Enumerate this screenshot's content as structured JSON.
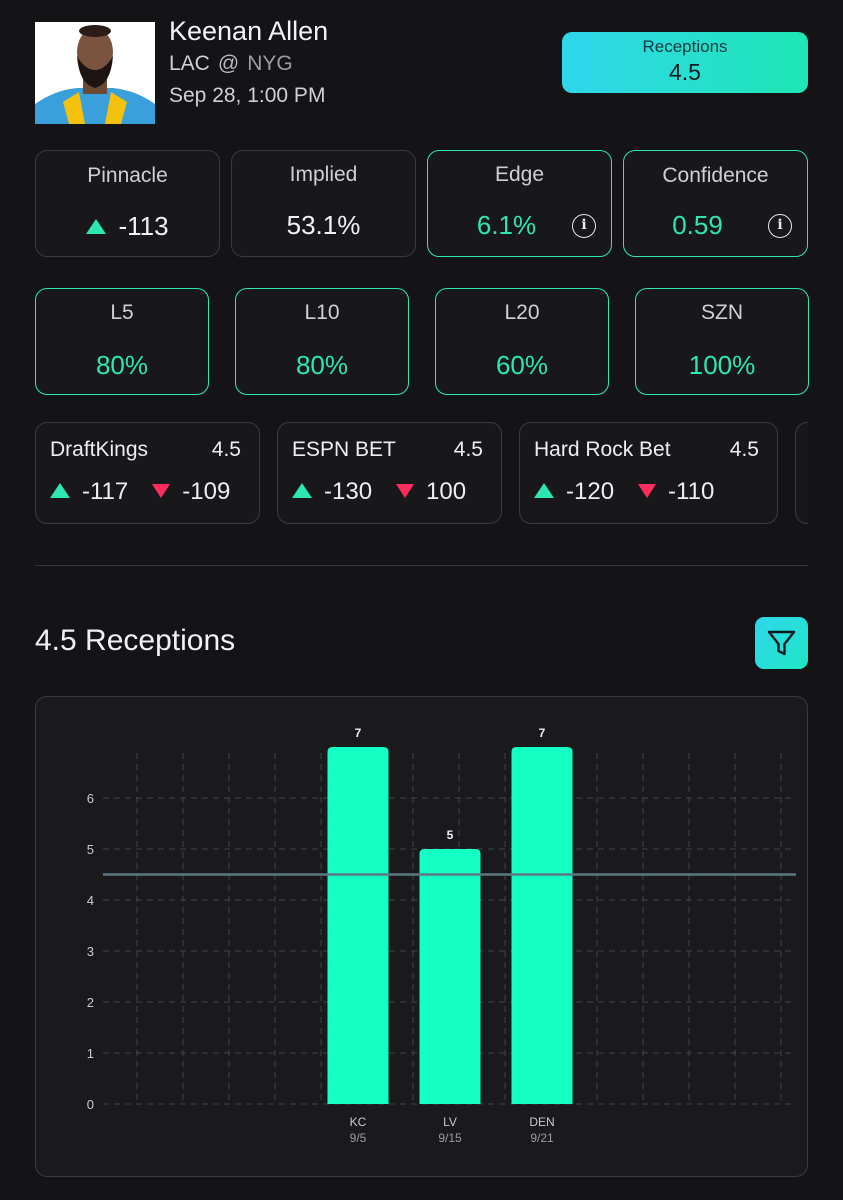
{
  "header": {
    "player_name": "Keenan Allen",
    "team": "LAC",
    "at_symbol": "@",
    "opponent": "NYG",
    "game_time": "Sep 28, 1:00 PM",
    "prop": {
      "label": "Receptions",
      "line": "4.5"
    }
  },
  "metrics": {
    "pinnacle": {
      "title": "Pinnacle",
      "value": "-113",
      "icon": "triangle-up-icon"
    },
    "implied": {
      "title": "Implied",
      "value": "53.1%"
    },
    "edge": {
      "title": "Edge",
      "value": "6.1%",
      "info_icon": "i"
    },
    "confidence": {
      "title": "Confidence",
      "value": "0.59",
      "info_icon": "i"
    }
  },
  "hit_rates": [
    {
      "title": "L5",
      "value": "80%"
    },
    {
      "title": "L10",
      "value": "80%"
    },
    {
      "title": "L20",
      "value": "60%"
    },
    {
      "title": "SZN",
      "value": "100%"
    }
  ],
  "books": [
    {
      "name": "DraftKings",
      "line": "4.5",
      "over": "-117",
      "under": "-109"
    },
    {
      "name": "ESPN BET",
      "line": "4.5",
      "over": "-130",
      "under": "100"
    },
    {
      "name": "Hard Rock Bet",
      "line": "4.5",
      "over": "-120",
      "under": "-110"
    }
  ],
  "section": {
    "title": "4.5 Receptions"
  },
  "colors": {
    "accent": "#2ee6b0",
    "bar": "#14ffc4",
    "down": "#ff2d5e",
    "line": "#5d7783"
  },
  "chart_data": {
    "type": "bar",
    "categories": [
      "KC",
      "LV",
      "DEN"
    ],
    "dates": [
      "9/5",
      "9/15",
      "9/21"
    ],
    "values": [
      7,
      5,
      7
    ],
    "value_labels": [
      "7",
      "5",
      "7"
    ],
    "yticks": [
      "0",
      "1",
      "2",
      "3",
      "4",
      "5",
      "6"
    ],
    "ylim": [
      0,
      7
    ],
    "reference_line": 4.5,
    "grid": true
  }
}
